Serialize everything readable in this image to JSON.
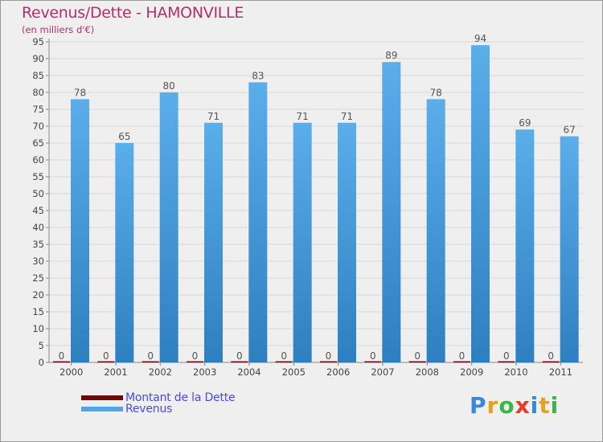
{
  "title": "Revenus/Dette - HAMONVILLE",
  "subtitle": "(en milliers d'€)",
  "legend": [
    {
      "label": "Montant de la Dette",
      "color": "#6b0a0a"
    },
    {
      "label": "Revenus",
      "color": "#4ea6e6"
    }
  ],
  "logo": {
    "text": "Proxiti",
    "colors": [
      "#3a86d8",
      "#e8a21a",
      "#3ab54a",
      "#e83a2a",
      "#3a86d8",
      "#e8a21a",
      "#3ab54a"
    ]
  },
  "chart_data": {
    "type": "bar",
    "title": "Revenus/Dette - HAMONVILLE",
    "ylabel": "(en milliers d'€)",
    "xlabel": "",
    "categories": [
      "2000",
      "2001",
      "2002",
      "2003",
      "2004",
      "2005",
      "2006",
      "2007",
      "2008",
      "2009",
      "2010",
      "2011"
    ],
    "series": [
      {
        "name": "Montant de la Dette",
        "color": "#6b0a0a",
        "values": [
          0,
          0,
          0,
          0,
          0,
          0,
          0,
          0,
          0,
          0,
          0,
          0
        ]
      },
      {
        "name": "Revenus",
        "color": "#4ea6e6",
        "values": [
          78,
          65,
          80,
          71,
          83,
          71,
          71,
          89,
          78,
          94,
          69,
          67
        ]
      }
    ],
    "ylim": [
      0,
      95
    ],
    "yticks": [
      0,
      5,
      10,
      15,
      20,
      25,
      30,
      35,
      40,
      45,
      50,
      55,
      60,
      65,
      70,
      75,
      80,
      85,
      90,
      95
    ],
    "grid": true,
    "legend_position": "bottom-left"
  }
}
